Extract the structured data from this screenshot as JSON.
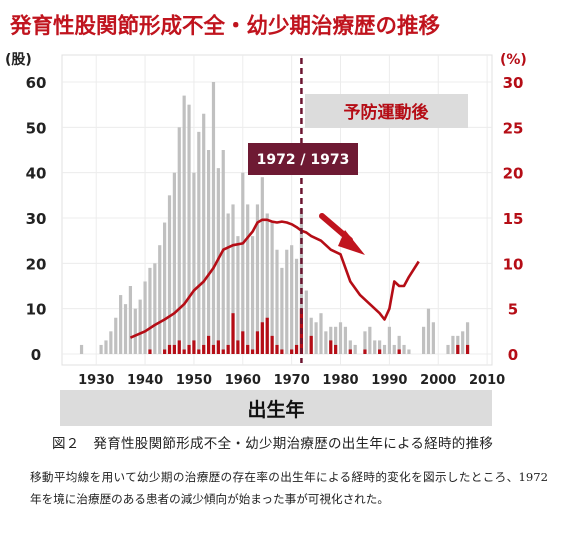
{
  "chart_data": {
    "type": "bar",
    "title": "発育性股関節形成不全・幼少期治療歴の推移",
    "y_left_unit": "(股)",
    "y_right_unit": "(%)",
    "xlabel": "出生年",
    "x_ticks": [
      "1930",
      "1940",
      "1950",
      "1960",
      "1970",
      "1980",
      "1990",
      "2000",
      "2010"
    ],
    "y_left_ticks": [
      "0",
      "10",
      "20",
      "30",
      "40",
      "50",
      "60"
    ],
    "y_right_ticks": [
      "0",
      "5",
      "10",
      "15",
      "20",
      "25",
      "30"
    ],
    "xlim": [
      1923,
      2011
    ],
    "ylim_left": [
      0,
      60
    ],
    "ylim_right": [
      0,
      30
    ],
    "divider_year": 1972,
    "divider_label": "1972 / 1973",
    "after_label": "予防運動後",
    "series": [
      {
        "name": "",
        "axis": "left",
        "color": "#c0c0c0",
        "x": [
          1927,
          1931,
          1932,
          1933,
          1934,
          1935,
          1936,
          1937,
          1938,
          1939,
          1940,
          1941,
          1942,
          1943,
          1944,
          1945,
          1946,
          1947,
          1948,
          1949,
          1950,
          1951,
          1952,
          1953,
          1954,
          1955,
          1956,
          1957,
          1958,
          1959,
          1960,
          1961,
          1962,
          1963,
          1964,
          1965,
          1966,
          1967,
          1968,
          1969,
          1970,
          1971,
          1972,
          1973,
          1974,
          1975,
          1976,
          1977,
          1978,
          1979,
          1980,
          1981,
          1982,
          1983,
          1985,
          1986,
          1987,
          1988,
          1989,
          1990,
          1991,
          1992,
          1993,
          1994,
          1997,
          1998,
          1999,
          2002,
          2003,
          2004,
          2005,
          2006
        ],
        "values": [
          2,
          2,
          3,
          5,
          8,
          13,
          11,
          15,
          10,
          12,
          16,
          19,
          20,
          24,
          29,
          35,
          40,
          50,
          57,
          55,
          40,
          49,
          53,
          45,
          60,
          41,
          45,
          31,
          33,
          26,
          40,
          33,
          26,
          33,
          39,
          31,
          29,
          23,
          19,
          23,
          24,
          21,
          32,
          14,
          8,
          7,
          9,
          5,
          6,
          6,
          7,
          6,
          3,
          2,
          5,
          6,
          3,
          3,
          2,
          6,
          2,
          4,
          2,
          1,
          6,
          10,
          7,
          2,
          4,
          4,
          5,
          7
        ]
      },
      {
        "name": "",
        "axis": "left",
        "color": "#b50d16",
        "x": [
          1941,
          1944,
          1945,
          1946,
          1947,
          1948,
          1949,
          1950,
          1951,
          1952,
          1953,
          1954,
          1955,
          1956,
          1957,
          1958,
          1959,
          1960,
          1961,
          1962,
          1963,
          1964,
          1965,
          1966,
          1967,
          1968,
          1970,
          1971,
          1972,
          1974,
          1978,
          1979,
          1982,
          1985,
          1988,
          1992,
          2004,
          2006
        ],
        "values": [
          1,
          1,
          2,
          2,
          3,
          1,
          2,
          3,
          1,
          2,
          4,
          2,
          3,
          1,
          2,
          9,
          3,
          5,
          2,
          1,
          5,
          7,
          8,
          4,
          2,
          1,
          1,
          2,
          10,
          4,
          3,
          2,
          1,
          1,
          1,
          1,
          2,
          2
        ]
      },
      {
        "name": "",
        "axis": "right",
        "type": "line",
        "color": "#b50d16",
        "x": [
          1937,
          1940,
          1942,
          1944,
          1946,
          1948,
          1950,
          1952,
          1954,
          1956,
          1958,
          1960,
          1962,
          1963,
          1964,
          1965,
          1966,
          1967,
          1968,
          1969,
          1970,
          1971,
          1972,
          1973,
          1974,
          1976,
          1978,
          1980,
          1982,
          1984,
          1986,
          1988,
          1989,
          1990,
          1991,
          1992,
          1993,
          1994,
          1996
        ],
        "values": [
          1.8,
          2.5,
          3.2,
          3.8,
          4.5,
          5.5,
          7.0,
          8.0,
          9.5,
          11.5,
          12.0,
          12.2,
          13.5,
          14.5,
          14.8,
          14.8,
          14.6,
          14.5,
          14.6,
          14.5,
          14.3,
          14.0,
          13.6,
          13.4,
          13.0,
          12.5,
          11.5,
          11.0,
          8.0,
          6.5,
          5.5,
          4.5,
          3.8,
          5.0,
          8.0,
          7.5,
          7.5,
          8.5,
          10.2
        ]
      }
    ]
  },
  "caption": {
    "figure_title": "図２　発育性股関節形成不全・幼少期治療歴の出生年による経時的推移",
    "body": "移動平均線を用いて幼少期の治療歴の存在率の出生年による経時的変化を図示したところ、1972 年を境に治療歴のある患者の減少傾向が始まった事が可視化された。"
  },
  "colors": {
    "accent": "#b50d16",
    "bar_gray": "#c0c0c0",
    "divider": "#6b1530",
    "band_gray": "#dcdcdc"
  }
}
